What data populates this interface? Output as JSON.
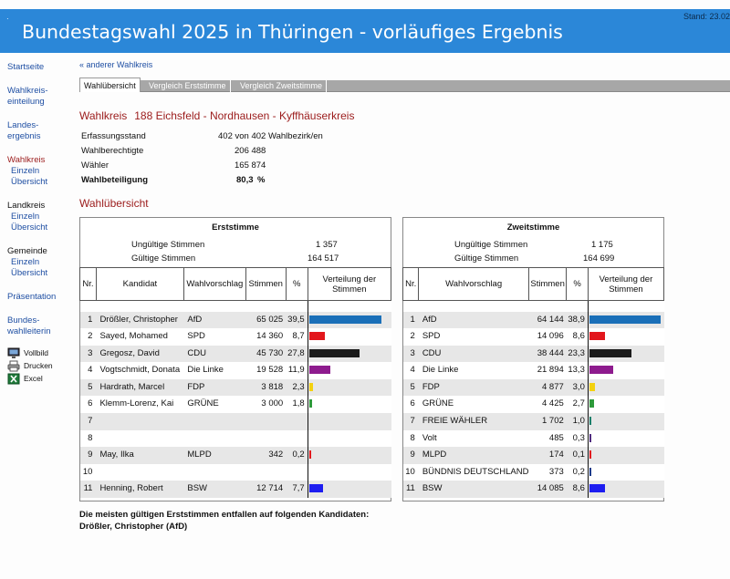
{
  "header": {
    "title": "Bundestagswahl 2025 in Thüringen - vorläufiges Ergebnis",
    "stand": "Stand: 23.02"
  },
  "sidebar": {
    "startseite": "Startseite",
    "wahlkreiseinteilung_1": "Wahlkreis-",
    "wahlkreiseinteilung_2": "einteilung",
    "landesergebnis_1": "Landes-",
    "landesergebnis_2": "ergebnis",
    "wahlkreis": "Wahlkreis",
    "wahlkreis_einzeln": "Einzeln",
    "wahlkreis_uebersicht": "Übersicht",
    "landkreis": "Landkreis",
    "landkreis_einzeln": "Einzeln",
    "landkreis_uebersicht": "Übersicht",
    "gemeinde": "Gemeinde",
    "gemeinde_einzeln": "Einzeln",
    "gemeinde_uebersicht": "Übersicht",
    "praesentation": "Präsentation",
    "wahlleiterin_1": "Bundes-",
    "wahlleiterin_2": "wahlleiterin",
    "vollbild": "Vollbild",
    "drucken": "Drucken",
    "excel": "Excel"
  },
  "nav": {
    "back": "« anderer Wahlkreis",
    "tabs": [
      "Wahlübersicht",
      "Vergleich Erststimme",
      "Vergleich Zweitstimme"
    ]
  },
  "wahlkreis": {
    "label": "Wahlkreis",
    "name": "188 Eichsfeld - Nordhausen - Kyffhäuserkreis"
  },
  "meta": {
    "erfassungsstand_label": "Erfassungsstand",
    "erfassungsstand_value": "402 von 402",
    "erfassungsstand_unit": "Wahlbezirk/en",
    "wahlberechtigte_label": "Wahlberechtigte",
    "wahlberechtigte_value": "206 488",
    "waehler_label": "Wähler",
    "waehler_value": "165 874",
    "beteiligung_label": "Wahlbeteiligung",
    "beteiligung_value": "80,3",
    "beteiligung_unit": "%"
  },
  "section_title": "Wahlübersicht",
  "erststimme": {
    "title": "Erststimme",
    "ungueltig_label": "Ungültige Stimmen",
    "ungueltig_value": "1 357",
    "gueltig_label": "Gültige Stimmen",
    "gueltig_value": "164 517",
    "headers": [
      "Nr.",
      "Kandidat",
      "Wahlvorschlag",
      "Stimmen",
      "%",
      "Verteilung der Stimmen"
    ],
    "rows": [
      {
        "nr": "1",
        "kandidat": "Drößler, Christopher",
        "partei": "AfD",
        "stimmen": "65 025",
        "pct": "39,5",
        "share": 39.5,
        "color": "#1a6fb8"
      },
      {
        "nr": "2",
        "kandidat": "Sayed, Mohamed",
        "partei": "SPD",
        "stimmen": "14 360",
        "pct": "8,7",
        "share": 8.7,
        "color": "#e2161c"
      },
      {
        "nr": "3",
        "kandidat": "Gregosz, David",
        "partei": "CDU",
        "stimmen": "45 730",
        "pct": "27,8",
        "share": 27.8,
        "color": "#1b1b1b"
      },
      {
        "nr": "4",
        "kandidat": "Vogtschmidt, Donata",
        "partei": "Die Linke",
        "stimmen": "19 528",
        "pct": "11,9",
        "share": 11.9,
        "color": "#8e1b8e"
      },
      {
        "nr": "5",
        "kandidat": "Hardrath, Marcel",
        "partei": "FDP",
        "stimmen": "3 818",
        "pct": "2,3",
        "share": 2.3,
        "color": "#f3d10f"
      },
      {
        "nr": "6",
        "kandidat": "Klemm-Lorenz, Kai",
        "partei": "GRÜNE",
        "stimmen": "3 000",
        "pct": "1,8",
        "share": 1.8,
        "color": "#2d9a3a"
      },
      {
        "nr": "7",
        "kandidat": "",
        "partei": "",
        "stimmen": "",
        "pct": "",
        "share": 0,
        "color": "#000000"
      },
      {
        "nr": "8",
        "kandidat": "",
        "partei": "",
        "stimmen": "",
        "pct": "",
        "share": 0,
        "color": "#000000"
      },
      {
        "nr": "9",
        "kandidat": "May, Ilka",
        "partei": "MLPD",
        "stimmen": "342",
        "pct": "0,2",
        "share": 0.2,
        "color": "#e2161c"
      },
      {
        "nr": "10",
        "kandidat": "",
        "partei": "",
        "stimmen": "",
        "pct": "",
        "share": 0,
        "color": "#000000"
      },
      {
        "nr": "11",
        "kandidat": "Henning, Robert",
        "partei": "BSW",
        "stimmen": "12 714",
        "pct": "7,7",
        "share": 7.7,
        "color": "#1d1df0"
      }
    ]
  },
  "zweitstimme": {
    "title": "Zweitstimme",
    "ungueltig_label": "Ungültige Stimmen",
    "ungueltig_value": "1 175",
    "gueltig_label": "Gültige Stimmen",
    "gueltig_value": "164 699",
    "headers": [
      "Nr.",
      "Wahlvorschlag",
      "Stimmen",
      "%",
      "Verteilung der Stimmen"
    ],
    "rows": [
      {
        "nr": "1",
        "partei": "AfD",
        "stimmen": "64 144",
        "pct": "38,9",
        "share": 38.9,
        "color": "#1a6fb8"
      },
      {
        "nr": "2",
        "partei": "SPD",
        "stimmen": "14 096",
        "pct": "8,6",
        "share": 8.6,
        "color": "#e2161c"
      },
      {
        "nr": "3",
        "partei": "CDU",
        "stimmen": "38 444",
        "pct": "23,3",
        "share": 23.3,
        "color": "#1b1b1b"
      },
      {
        "nr": "4",
        "partei": "Die Linke",
        "stimmen": "21 894",
        "pct": "13,3",
        "share": 13.3,
        "color": "#8e1b8e"
      },
      {
        "nr": "5",
        "partei": "FDP",
        "stimmen": "4 877",
        "pct": "3,0",
        "share": 3.0,
        "color": "#f3d10f"
      },
      {
        "nr": "6",
        "partei": "GRÜNE",
        "stimmen": "4 425",
        "pct": "2,7",
        "share": 2.7,
        "color": "#2d9a3a"
      },
      {
        "nr": "7",
        "partei": "FREIE WÄHLER",
        "stimmen": "1 702",
        "pct": "1,0",
        "share": 1.0,
        "color": "#1a7f6a"
      },
      {
        "nr": "8",
        "partei": "Volt",
        "stimmen": "485",
        "pct": "0,3",
        "share": 0.3,
        "color": "#4f2b7f"
      },
      {
        "nr": "9",
        "partei": "MLPD",
        "stimmen": "174",
        "pct": "0,1",
        "share": 0.1,
        "color": "#e2161c"
      },
      {
        "nr": "10",
        "partei": "BÜNDNIS DEUTSCHLAND",
        "stimmen": "373",
        "pct": "0,2",
        "share": 0.2,
        "color": "#1a3a8a"
      },
      {
        "nr": "11",
        "partei": "BSW",
        "stimmen": "14 085",
        "pct": "8,6",
        "share": 8.6,
        "color": "#1d1df0"
      }
    ]
  },
  "footer": {
    "line1": "Die meisten gültigen Erststimmen entfallen auf folgenden Kandidaten:",
    "line2": "Drößler, Christopher (AfD)"
  }
}
